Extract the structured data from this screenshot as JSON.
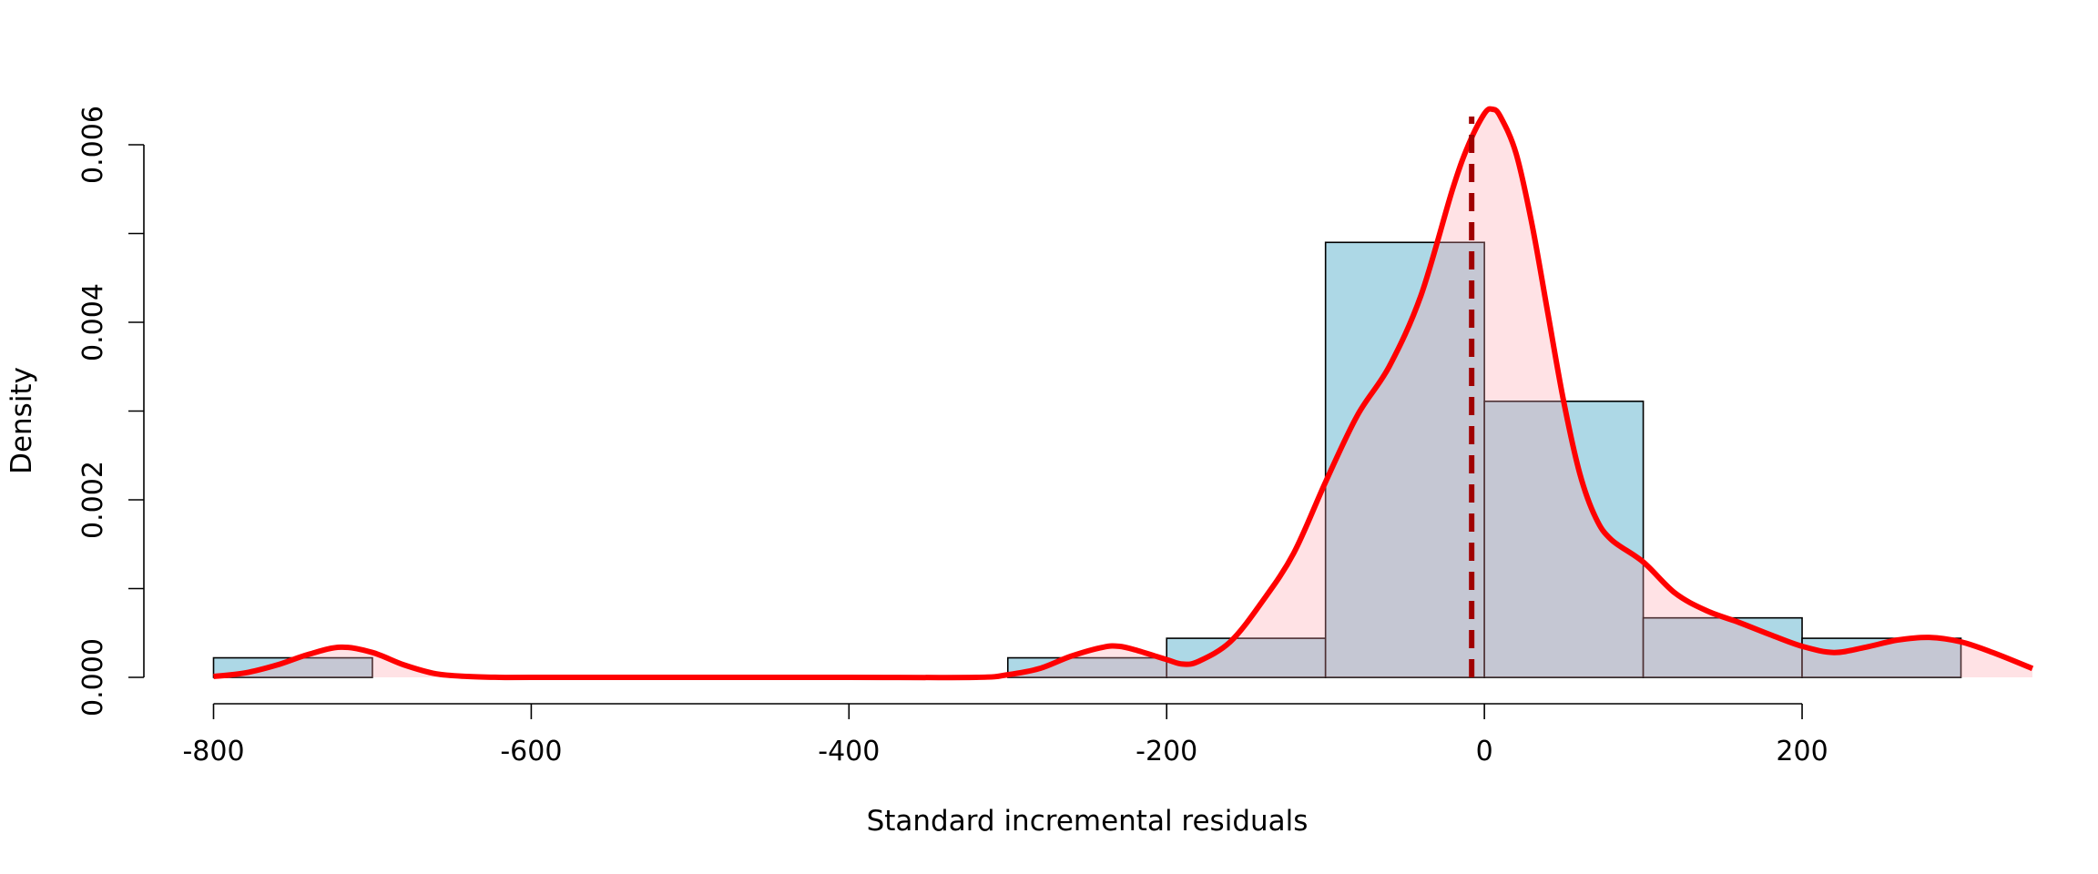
{
  "chart_data": {
    "type": "bar",
    "title": "",
    "xlabel": "Standard incremental residuals",
    "ylabel": "Density",
    "xlim": [
      -845,
      345
    ],
    "ylim": [
      0,
      0.0064
    ],
    "x_ticks": [
      -800,
      -600,
      -400,
      -200,
      0,
      200
    ],
    "x_tick_labels": [
      "-800",
      "-600",
      "-400",
      "-200",
      "0",
      "200"
    ],
    "y_ticks": [
      0,
      0.001,
      0.002,
      0.003,
      0.004,
      0.005,
      0.006
    ],
    "y_tick_labels": [
      "0.000",
      "",
      "0.002",
      "",
      "0.004",
      "",
      "0.006"
    ],
    "grid": false,
    "legend": "none",
    "histogram": {
      "bins": [
        {
          "from": -800,
          "to": -700,
          "density": 0.00022
        },
        {
          "from": -300,
          "to": -200,
          "density": 0.00022
        },
        {
          "from": -200,
          "to": -100,
          "density": 0.00044
        },
        {
          "from": -100,
          "to": 0,
          "density": 0.0049
        },
        {
          "from": 0,
          "to": 100,
          "density": 0.00311
        },
        {
          "from": 100,
          "to": 200,
          "density": 0.00067
        },
        {
          "from": 200,
          "to": 300,
          "density": 0.00044
        }
      ],
      "fill_color": "#add8e6",
      "edge_color": "#000000"
    },
    "density_curve": {
      "color": "#ff0000",
      "fill": "rgba(255,160,170,0.3)",
      "x": [
        -800,
        -780,
        -760,
        -740,
        -720,
        -700,
        -680,
        -660,
        -640,
        -620,
        -600,
        -500,
        -400,
        -320,
        -300,
        -280,
        -260,
        -240,
        -230,
        -220,
        -200,
        -190,
        -180,
        -160,
        -140,
        -120,
        -100,
        -80,
        -60,
        -40,
        -20,
        -10,
        0,
        5,
        10,
        20,
        30,
        40,
        50,
        60,
        70,
        80,
        100,
        120,
        140,
        160,
        180,
        200,
        220,
        240,
        260,
        280,
        300,
        320,
        345
      ],
      "y": [
        1e-05,
        5e-05,
        0.00014,
        0.00026,
        0.00034,
        0.00028,
        0.00014,
        4e-05,
        1e-05,
        0.0,
        0.0,
        0.0,
        0.0,
        0.0,
        3e-05,
        0.0001,
        0.00024,
        0.00034,
        0.00035,
        0.00031,
        0.0002,
        0.00015,
        0.00018,
        0.0004,
        0.00085,
        0.0014,
        0.0022,
        0.00295,
        0.0035,
        0.0043,
        0.0055,
        0.006,
        0.00635,
        0.0064,
        0.00632,
        0.0059,
        0.0051,
        0.0041,
        0.0031,
        0.0023,
        0.0018,
        0.00155,
        0.0013,
        0.00095,
        0.00075,
        0.00062,
        0.00048,
        0.00035,
        0.00028,
        0.00034,
        0.00042,
        0.00045,
        0.0004,
        0.00028,
        0.0001
      ]
    },
    "mean_line": {
      "x": -8,
      "color": "#a00000",
      "style": "dashed"
    }
  }
}
